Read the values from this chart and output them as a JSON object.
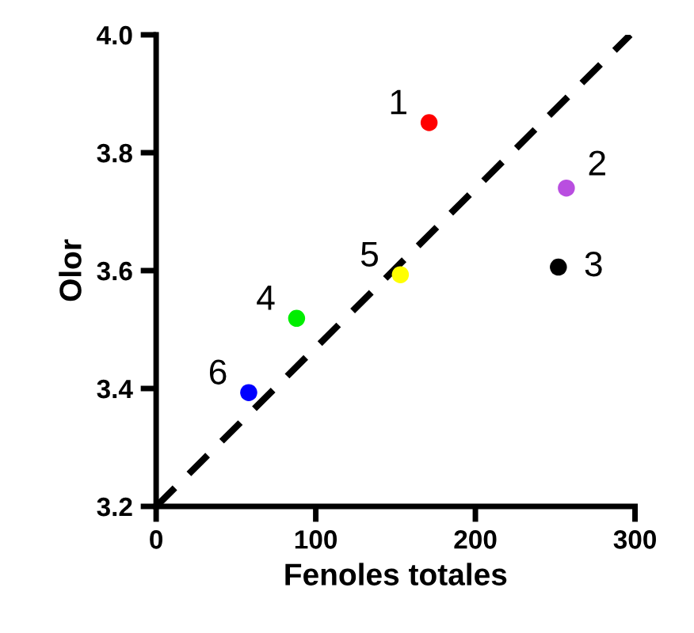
{
  "chart_data": {
    "type": "scatter",
    "xlabel": "Fenoles totales",
    "ylabel": "Olor",
    "xlim": [
      0,
      300
    ],
    "ylim": [
      3.2,
      4.0
    ],
    "xticks": [
      0,
      100,
      200,
      300
    ],
    "yticks": [
      {
        "value": 3.2,
        "label": "3.2"
      },
      {
        "value": 3.4,
        "label": "3.4"
      },
      {
        "value": 3.6,
        "label": "3.6"
      },
      {
        "value": 3.8,
        "label": "3.8"
      },
      {
        "value": 4.0,
        "label": "4.0"
      }
    ],
    "grid": false,
    "marker": "circle",
    "series": [
      {
        "x": [
          171,
          257,
          252,
          88,
          153,
          58
        ],
        "values": [
          3.851,
          3.74,
          3.606,
          3.519,
          3.593,
          3.393
        ],
        "colors": [
          "#ff0000",
          "#b94ee0",
          "#000000",
          "#00ee00",
          "#ffff00",
          "#0000ff"
        ]
      },
      {
        "type": "line",
        "x": [
          0,
          297
        ],
        "values": [
          3.2,
          4.0
        ],
        "color": "#000000",
        "line_style": "dashed",
        "marker": "none"
      }
    ],
    "annotations": [
      {
        "text": "1",
        "x": 171,
        "y": 3.851
      },
      {
        "text": "2",
        "x": 257,
        "y": 3.74
      },
      {
        "text": "3",
        "x": 252,
        "y": 3.606
      },
      {
        "text": "4",
        "x": 88,
        "y": 3.519
      },
      {
        "text": "5",
        "x": 153,
        "y": 3.593
      },
      {
        "text": "6",
        "x": 58,
        "y": 3.393
      }
    ]
  }
}
